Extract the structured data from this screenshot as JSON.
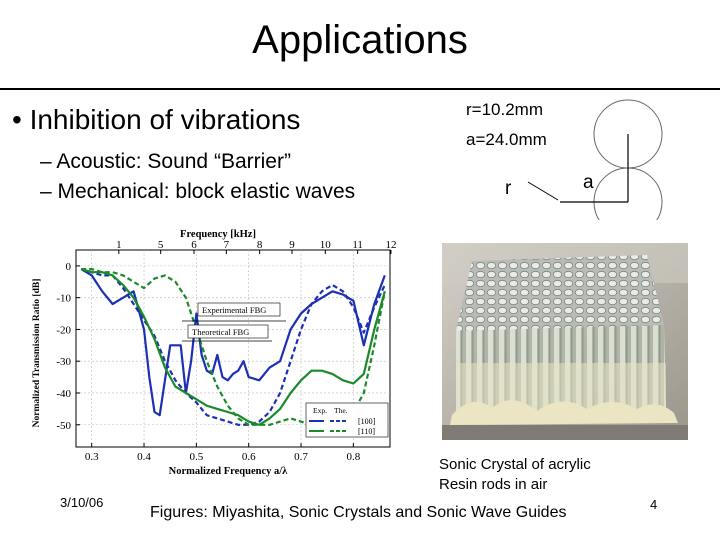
{
  "slide": {
    "title": "Applications",
    "bullet_main": "• Inhibition of vibrations",
    "sub_bullets": [
      "– Acoustic: Sound “Barrier”",
      "– Mechanical: block elastic waves"
    ],
    "date": "3/10/06",
    "credit": "Figures: Miyashita, Sonic Crystals and Sonic Wave Guides",
    "page_number": "4"
  },
  "lattice": {
    "r_value": "r=10.2mm",
    "a_value": "a=24.0mm",
    "r_label": "r",
    "a_label": "a"
  },
  "photo": {
    "caption_line1": "Sonic Crystal of acrylic",
    "caption_line2": "Resin rods in air"
  },
  "chart_data": {
    "type": "line",
    "title": "",
    "top_axis": {
      "label": "Frequency [kHz]",
      "ticks": [
        "1",
        "5",
        "6",
        "7",
        "8",
        "9",
        "10",
        "11",
        "12"
      ]
    },
    "xlabel": "Normalized Frequency a/λ",
    "ylabel": "Normalized Transmission Ratio [dB]",
    "xlim": [
      0.27,
      0.87
    ],
    "ylim": [
      -57,
      5
    ],
    "x_ticks": [
      "0.3",
      "0.4",
      "0.5",
      "0.6",
      "0.7",
      "0.8"
    ],
    "y_ticks": [
      "0",
      "-10",
      "-20",
      "-30",
      "-40",
      "-50"
    ],
    "annotations": [
      "Experimental FBG",
      "Theoretical FBG"
    ],
    "legend": {
      "headers": [
        "Exp.",
        "The."
      ],
      "entries": [
        "[100]",
        "[110]"
      ],
      "position": "bottom-right"
    },
    "series": [
      {
        "color": "#1c2fb5",
        "dash": "solid",
        "x": [
          0.28,
          0.3,
          0.32,
          0.34,
          0.36,
          0.38,
          0.4,
          0.41,
          0.42,
          0.43,
          0.45,
          0.47,
          0.48,
          0.49,
          0.5,
          0.51,
          0.52,
          0.53,
          0.54,
          0.55,
          0.56,
          0.57,
          0.58,
          0.59,
          0.6,
          0.62,
          0.64,
          0.66,
          0.68,
          0.7,
          0.72,
          0.74,
          0.76,
          0.78,
          0.8,
          0.82,
          0.84,
          0.86
        ],
        "y": [
          -1,
          -3,
          -8,
          -12,
          -10,
          -8,
          -20,
          -35,
          -46,
          -47,
          -25,
          -25,
          -40,
          -30,
          -15,
          -28,
          -33,
          -34,
          -28,
          -35,
          -36,
          -34,
          -33,
          -30,
          -35,
          -36,
          -32,
          -30,
          -20,
          -15,
          -12,
          -10,
          -8,
          -9,
          -11,
          -25,
          -12,
          -3
        ]
      },
      {
        "color": "#1c2fb5",
        "dash": "dashed",
        "x": [
          0.28,
          0.3,
          0.32,
          0.34,
          0.36,
          0.38,
          0.4,
          0.42,
          0.44,
          0.46,
          0.48,
          0.5,
          0.52,
          0.54,
          0.56,
          0.58,
          0.6,
          0.62,
          0.64,
          0.66,
          0.68,
          0.7,
          0.72,
          0.74,
          0.76,
          0.78,
          0.8,
          0.82,
          0.84,
          0.86
        ],
        "y": [
          -1,
          -2,
          -3,
          -3,
          -7,
          -12,
          -17,
          -22,
          -30,
          -36,
          -40,
          -43,
          -47,
          -48,
          -49,
          -50,
          -50,
          -49,
          -46,
          -40,
          -30,
          -20,
          -12,
          -8,
          -6,
          -8,
          -13,
          -21,
          -13,
          -6
        ]
      },
      {
        "color": "#1b8a2a",
        "dash": "solid",
        "x": [
          0.28,
          0.3,
          0.32,
          0.34,
          0.36,
          0.38,
          0.4,
          0.42,
          0.44,
          0.46,
          0.48,
          0.5,
          0.52,
          0.54,
          0.56,
          0.58,
          0.6,
          0.62,
          0.64,
          0.66,
          0.68,
          0.7,
          0.72,
          0.74,
          0.76,
          0.78,
          0.8,
          0.82,
          0.84,
          0.86
        ],
        "y": [
          -1,
          -2,
          -2,
          -3,
          -6,
          -10,
          -16,
          -23,
          -32,
          -38,
          -40,
          -42,
          -44,
          -45,
          -46,
          -47,
          -49,
          -50,
          -48,
          -45,
          -40,
          -36,
          -33,
          -33,
          -34,
          -36,
          -37,
          -34,
          -20,
          -8
        ]
      },
      {
        "color": "#1b8a2a",
        "dash": "dashed",
        "x": [
          0.28,
          0.3,
          0.32,
          0.34,
          0.36,
          0.38,
          0.4,
          0.42,
          0.44,
          0.46,
          0.48,
          0.5,
          0.52,
          0.54,
          0.56,
          0.58,
          0.6,
          0.62,
          0.64,
          0.66,
          0.68,
          0.7,
          0.72,
          0.74,
          0.76,
          0.78,
          0.8,
          0.82,
          0.84,
          0.86
        ],
        "y": [
          -1,
          -1,
          -2,
          -2,
          -3,
          -5,
          -7,
          -4,
          -3,
          -5,
          -10,
          -20,
          -30,
          -38,
          -44,
          -48,
          -50,
          -50,
          -50,
          -49,
          -48,
          -49,
          -50,
          -51,
          -50,
          -48,
          -46,
          -40,
          -25,
          -8
        ]
      }
    ]
  }
}
